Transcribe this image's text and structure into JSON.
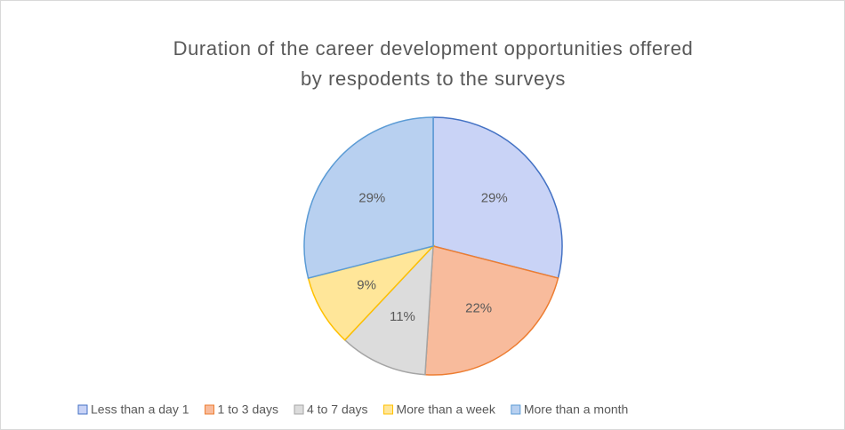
{
  "chart_data": {
    "type": "pie",
    "title": [
      "Duration of the career development opportunities offered",
      "by respodents to the surveys"
    ],
    "categories": [
      "Less than a day 1",
      "1 to 3 days",
      "4 to 7 days",
      "More than a week",
      "More than a month"
    ],
    "values": [
      29,
      22,
      11,
      9,
      29
    ],
    "value_labels": [
      "29%",
      "22%",
      "11%",
      "9%",
      "29%"
    ],
    "colors": [
      "#c9d3f6",
      "#f8bb9c",
      "#dcdcdc",
      "#ffe699",
      "#b8d0f0"
    ],
    "legend": "bottom"
  }
}
